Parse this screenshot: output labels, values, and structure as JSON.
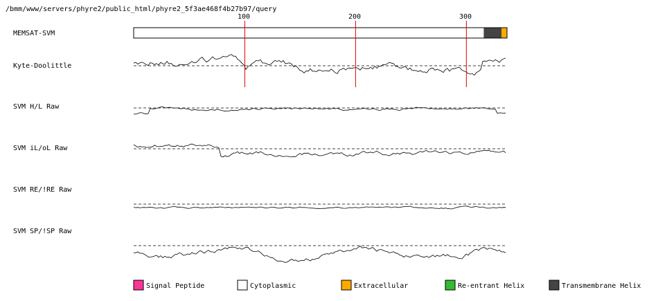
{
  "header_path": "/bmm/www/servers/phyre2/public_html/phyre2_5f3ae468f4b27b97/query",
  "ruler_ticks": [
    "100",
    "200",
    "300"
  ],
  "tracks": [
    {
      "id": "memsat",
      "label": "MEMSAT-SVM"
    },
    {
      "id": "kd",
      "label": "Kyte-Doolittle"
    },
    {
      "id": "hl",
      "label": "SVM H/L Raw"
    },
    {
      "id": "io",
      "label": "SVM iL/oL Raw"
    },
    {
      "id": "re",
      "label": "SVM RE/!RE Raw"
    },
    {
      "id": "sp",
      "label": "SVM SP/!SP Raw"
    }
  ],
  "sequence_length": 337,
  "memsat_segments": [
    {
      "start": 1,
      "end": 317,
      "type": "Cytoplasmic"
    },
    {
      "start": 317,
      "end": 333,
      "type": "Transmembrane Helix"
    },
    {
      "start": 333,
      "end": 337,
      "type": "Extracellular"
    }
  ],
  "legend": [
    {
      "label": "Signal Peptide",
      "color": "#ff3399"
    },
    {
      "label": "Cytoplasmic",
      "color": "#ffffff"
    },
    {
      "label": "Extracellular",
      "color": "#ffaa00"
    },
    {
      "label": "Re-entrant Helix",
      "color": "#33bb33"
    },
    {
      "label": "Transmembrane Helix",
      "color": "#444444"
    }
  ],
  "colors": {
    "ruler": "#dd0000",
    "trace": "#000000",
    "baseline": "#000000"
  }
}
